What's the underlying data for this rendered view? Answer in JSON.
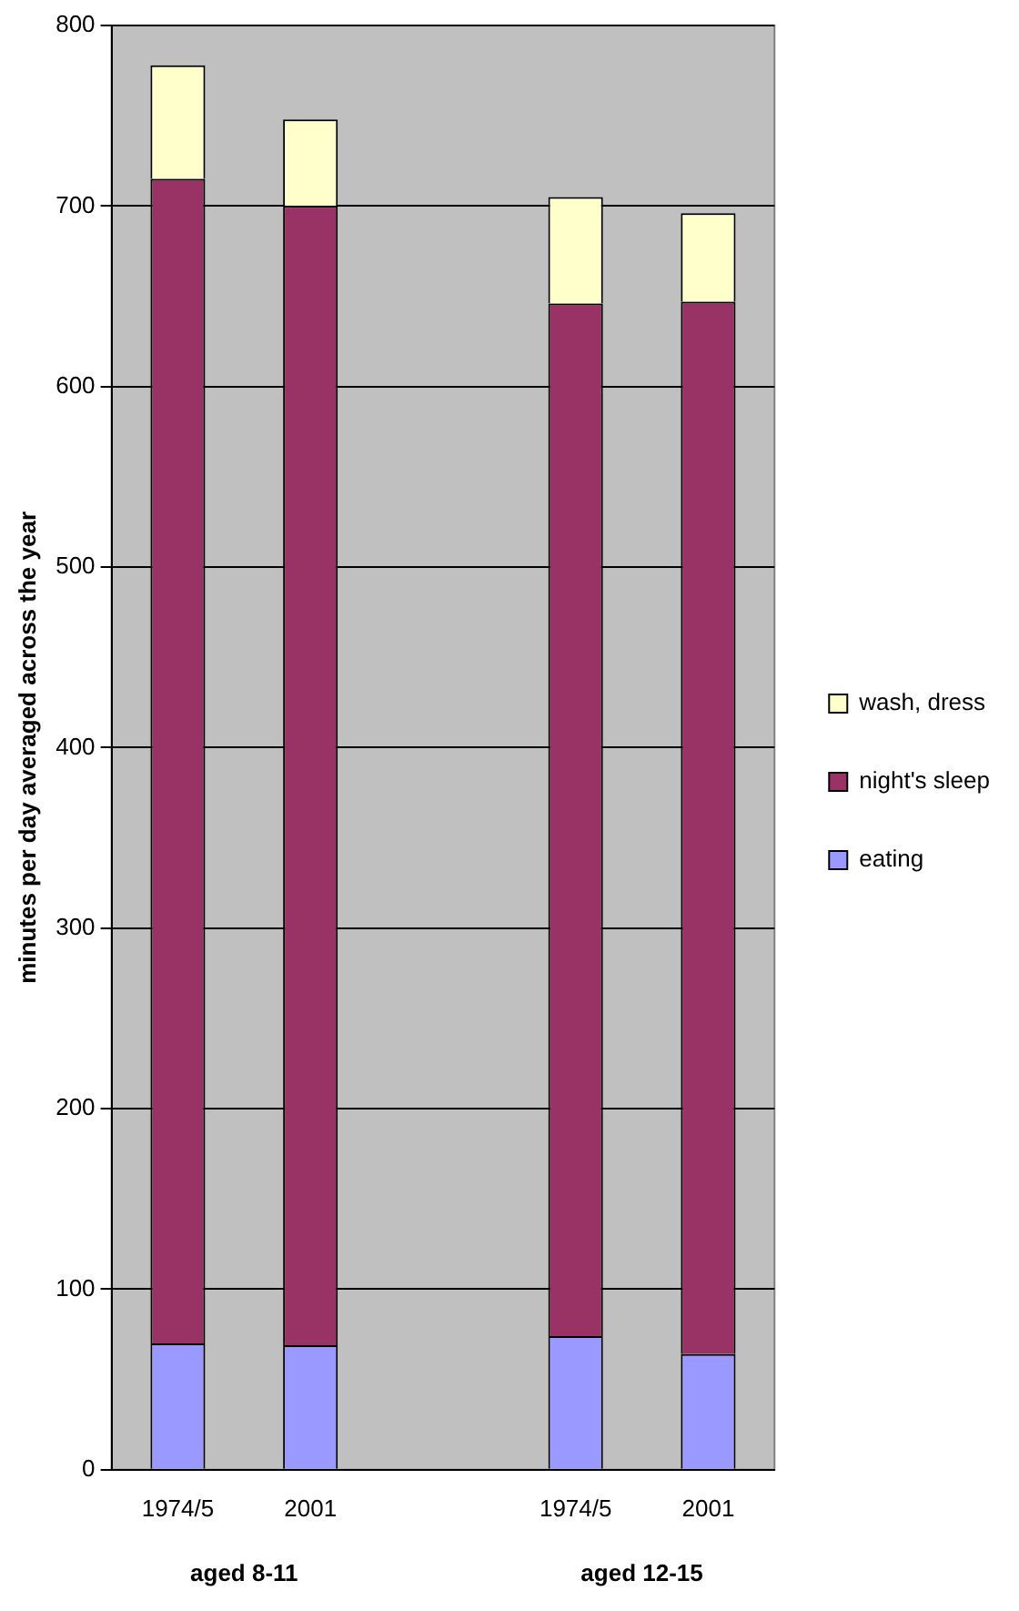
{
  "chart_data": {
    "type": "bar",
    "stacked": true,
    "ylabel": "minutes per day averaged across the year",
    "categories": [
      "1974/5",
      "2001",
      null,
      "1974/5",
      "2001"
    ],
    "series": [
      {
        "name": "eating",
        "color": "#9999ff",
        "values": [
          70,
          69,
          null,
          74,
          64
        ]
      },
      {
        "name": "night's sleep",
        "color": "#993366",
        "values": [
          645,
          631,
          null,
          572,
          583
        ]
      },
      {
        "name": "wash, dress",
        "color": "#ffffcc",
        "values": [
          63,
          48,
          null,
          59,
          49
        ]
      }
    ],
    "ylim": [
      0,
      800
    ],
    "yticks": [
      0,
      100,
      200,
      300,
      400,
      500,
      600,
      700,
      800
    ],
    "grid": "y",
    "legend": "right",
    "annotations": [
      "aged 8-11",
      "aged 12-15"
    ]
  }
}
